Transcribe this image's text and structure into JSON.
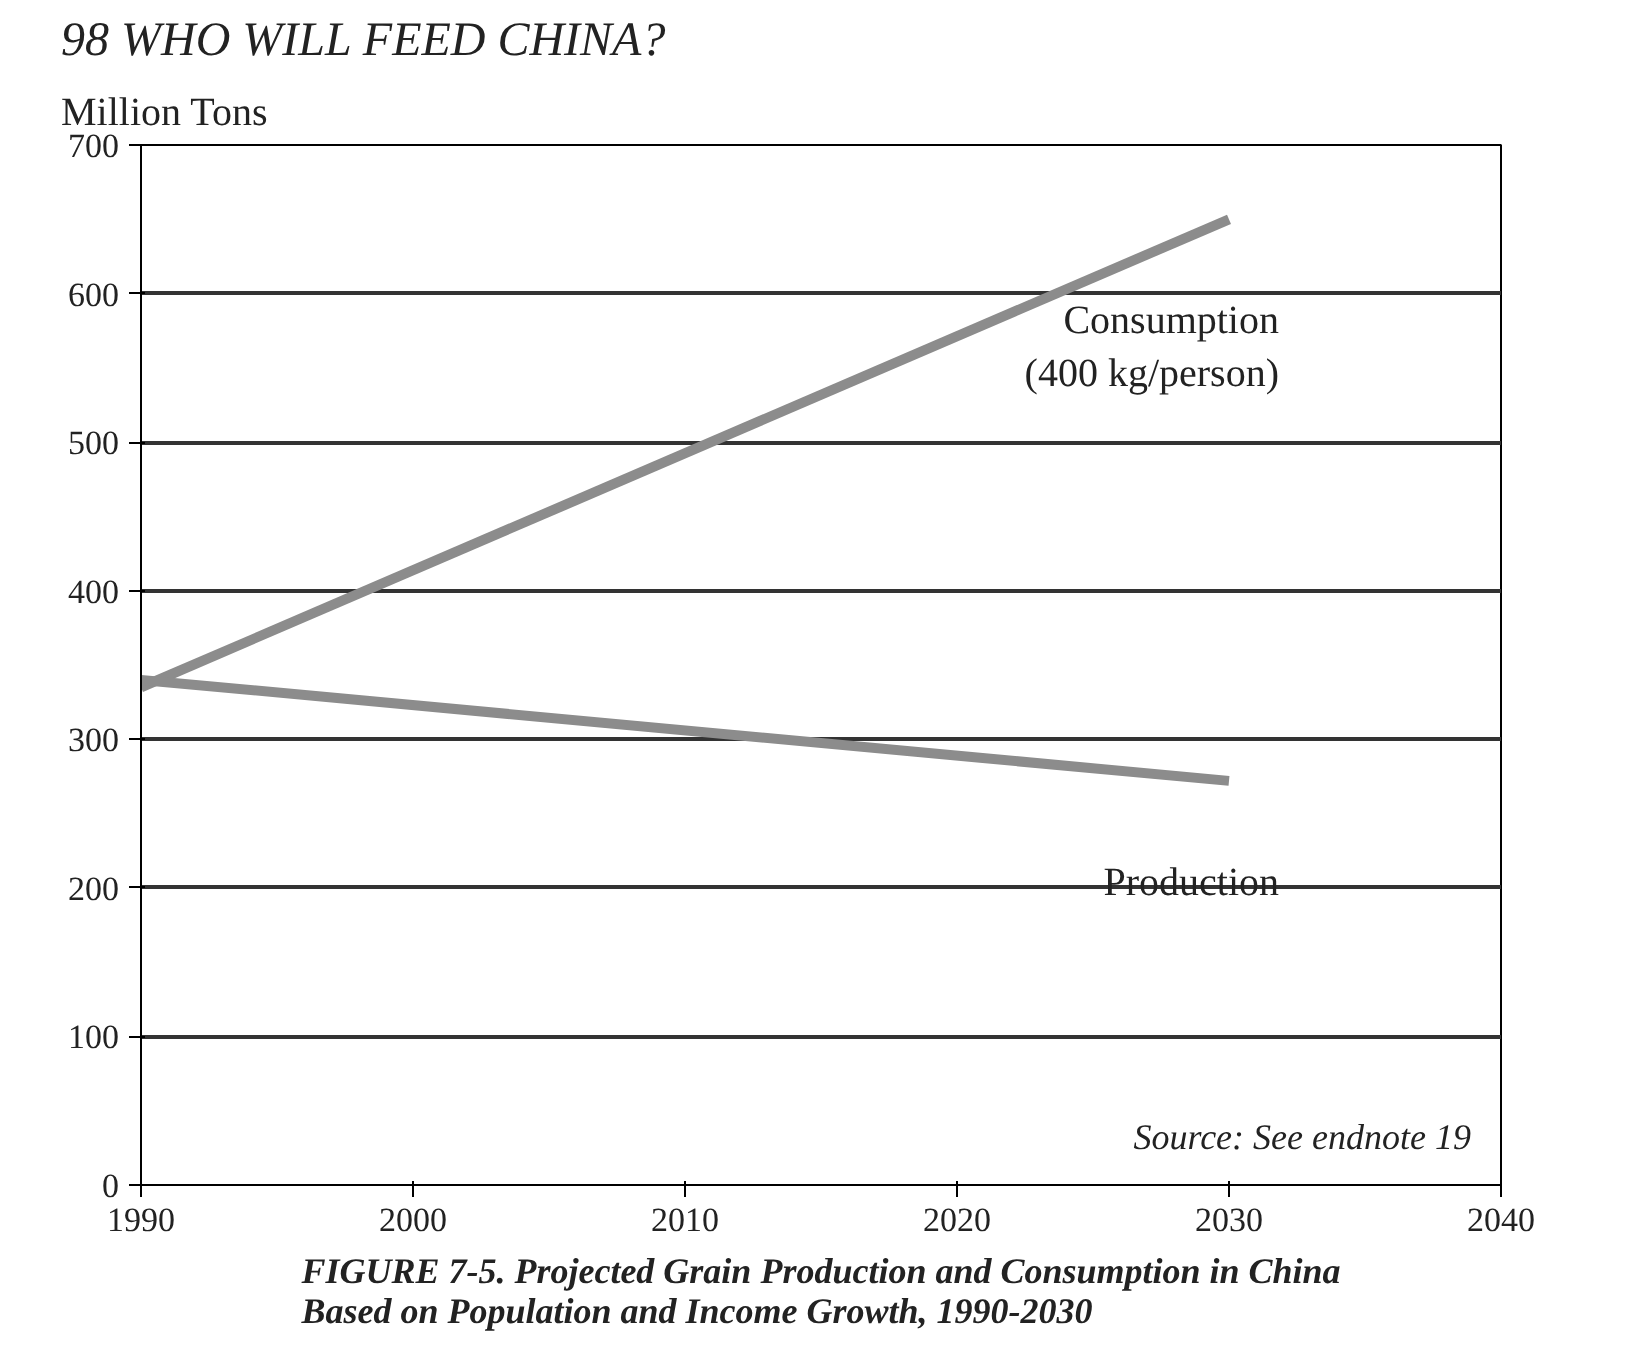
{
  "chart_data": {
    "type": "line",
    "title": "FIGURE 7-5. Projected Grain Production and Consumption in China\nBased on Population and Income Growth, 1990-2030",
    "ylabel": "Million Tons",
    "annotations": [
      "98",
      "WHO WILL FEED CHINA?",
      "Source: See endnote 19"
    ],
    "x": [
      1990,
      2030
    ],
    "series": [
      {
        "name": "Consumption\n(400 kg/person)",
        "color": "#8c8c8c",
        "values": [
          335,
          650
        ]
      },
      {
        "name": "Production",
        "color": "#8c8c8c",
        "values": [
          340,
          272
        ]
      }
    ],
    "xlim": [
      1990,
      2040
    ],
    "xticks": [
      1990,
      2000,
      2010,
      2020,
      2030,
      2040
    ],
    "ylim": [
      0,
      700
    ],
    "yticks": [
      0,
      100,
      200,
      300,
      400,
      500,
      600,
      700
    ],
    "grid": "y",
    "line_style": "solid",
    "marker": "none"
  }
}
